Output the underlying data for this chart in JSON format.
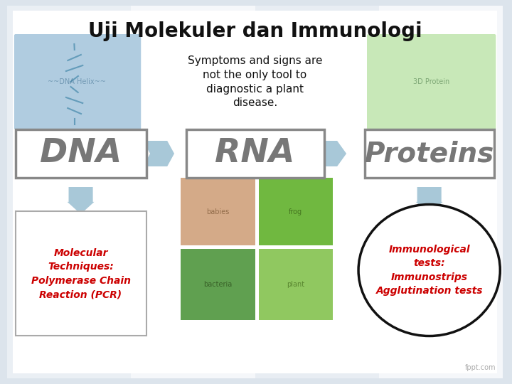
{
  "title": "Uji Molekuler dan Immunologi",
  "subtitle": "Symptoms and signs are\nnot the only tool to\ndiagnostic a plant\ndisease.",
  "background_color": "#dce4ec",
  "title_color": "#111111",
  "title_fontsize": 20,
  "subtitle_color": "#111111",
  "subtitle_fontsize": 11,
  "box_labels": [
    "DNA",
    "RNA",
    "Proteins"
  ],
  "box_text_color": "#777777",
  "box_border_color": "#999999",
  "arrow_color": "#a8c8d8",
  "mol_text": "Molecular\nTechniques:\nPolymerase Chain\nReaction (PCR)",
  "mol_text_color": "#cc0000",
  "immuno_text": "Immunological\ntests:\nImmunostrips\nAgglutination tests",
  "immuno_text_color": "#cc0000",
  "fppt_text": "fppt.com",
  "fppt_color": "#aaaaaa",
  "panel_colors": [
    "#e8edf2",
    "#f0f4f7",
    "#e4eaf0",
    "#f0f4f7"
  ],
  "slide_white": "#ffffff"
}
